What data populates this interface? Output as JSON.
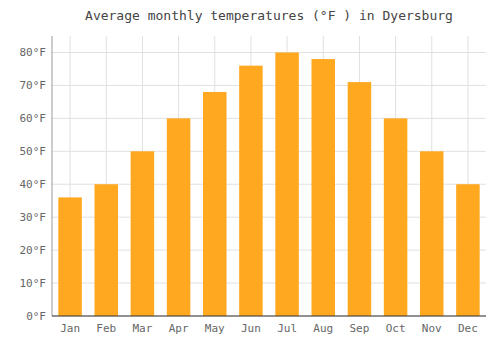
{
  "chart_data": {
    "type": "bar",
    "title": "Average monthly temperatures (°F ) in Dyersburg",
    "categories": [
      "Jan",
      "Feb",
      "Mar",
      "Apr",
      "May",
      "Jun",
      "Jul",
      "Aug",
      "Sep",
      "Oct",
      "Nov",
      "Dec"
    ],
    "values": [
      36,
      40,
      50,
      60,
      68,
      76,
      80,
      78,
      71,
      60,
      50,
      40
    ],
    "color": "#FFA820",
    "ylim": [
      0,
      85
    ],
    "yticks": [
      {
        "value": 0,
        "label": "0°F"
      },
      {
        "value": 10,
        "label": "10°F"
      },
      {
        "value": 20,
        "label": "20°F"
      },
      {
        "value": 30,
        "label": "30°F"
      },
      {
        "value": 40,
        "label": "40°F"
      },
      {
        "value": 50,
        "label": "50°F"
      },
      {
        "value": 60,
        "label": "60°F"
      },
      {
        "value": 70,
        "label": "70°F"
      },
      {
        "value": 80,
        "label": "80°F"
      }
    ],
    "grid": true
  }
}
